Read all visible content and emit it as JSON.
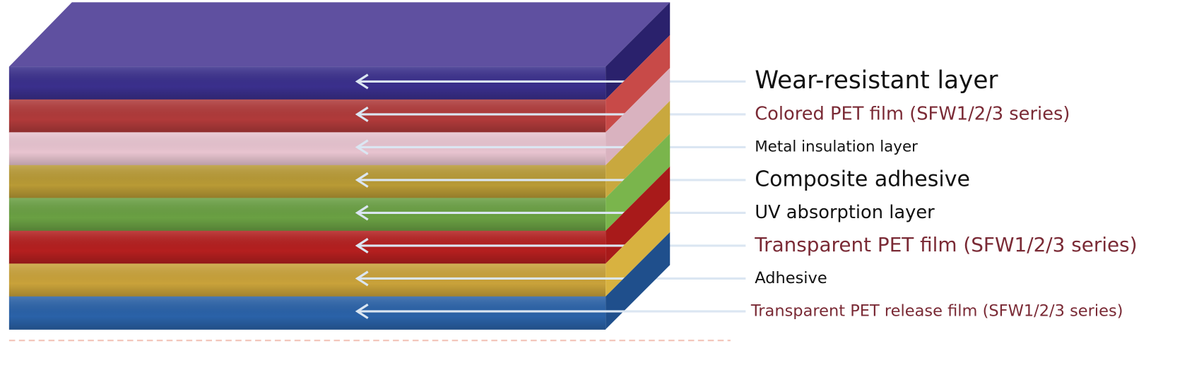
{
  "layers": [
    {
      "label": "Wear-resistant layer"
    },
    {
      "label": "Colored PET film (SFW1/2/3 series)"
    },
    {
      "label": "Metal insulation layer"
    },
    {
      "label": "Composite adhesive"
    },
    {
      "label": "UV absorption layer"
    },
    {
      "label": "Transparent PET film (SFW1/2/3 series)"
    },
    {
      "label": "Adhesive"
    },
    {
      "label": "Transparent PET release film (SFW1/2/3 series)"
    }
  ]
}
